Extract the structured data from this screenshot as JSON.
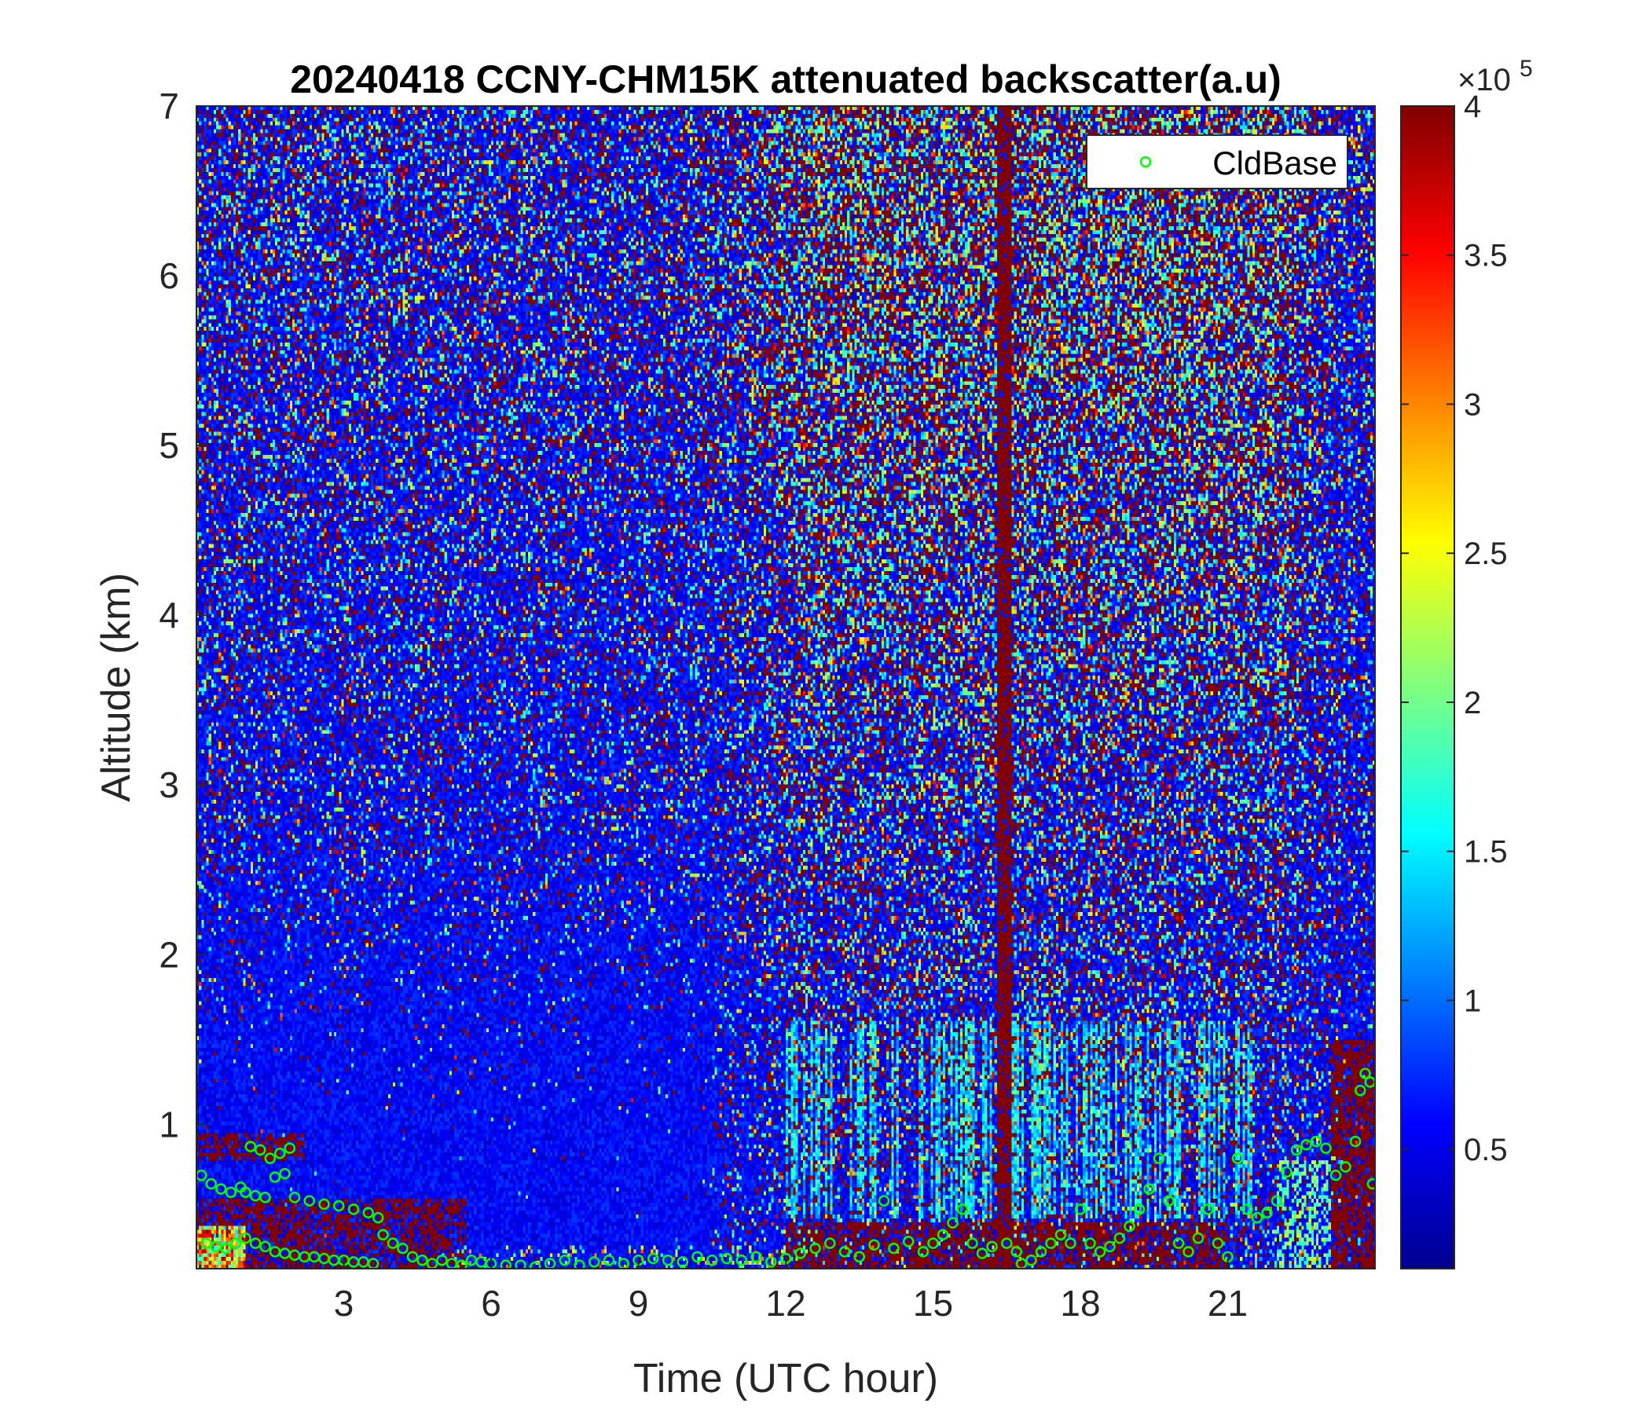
{
  "chart_data": {
    "type": "heatmap",
    "title": "20240418 CCNY-CHM15K attenuated backscatter(a.u)",
    "xlabel": "Time (UTC hour)",
    "ylabel": "Altitude (km)",
    "xlim": [
      0,
      24
    ],
    "ylim": [
      0.15,
      7
    ],
    "x_ticks": [
      3,
      6,
      9,
      12,
      15,
      18,
      21
    ],
    "y_ticks": [
      1,
      2,
      3,
      4,
      5,
      6,
      7
    ],
    "colormap": "jet",
    "colorbar": {
      "range": [
        10000,
        400000
      ],
      "ticks": [
        0.5,
        1,
        1.5,
        2,
        2.5,
        3,
        3.5,
        4
      ],
      "multiplier_base": "×10",
      "multiplier_exp": "5"
    },
    "legend": {
      "position": "top-right",
      "entries": [
        {
          "name": "CldBase",
          "marker": "circle",
          "color": "#00ff00"
        }
      ]
    },
    "series": [
      {
        "name": "CldBase",
        "points": [
          [
            0.1,
            0.7
          ],
          [
            0.3,
            0.65
          ],
          [
            0.5,
            0.62
          ],
          [
            0.7,
            0.6
          ],
          [
            0.9,
            0.63
          ],
          [
            1.1,
            0.87
          ],
          [
            1.3,
            0.85
          ],
          [
            1.5,
            0.8
          ],
          [
            1.7,
            0.83
          ],
          [
            1.9,
            0.86
          ],
          [
            1.0,
            0.6
          ],
          [
            1.2,
            0.58
          ],
          [
            1.4,
            0.57
          ],
          [
            1.6,
            0.69
          ],
          [
            1.8,
            0.71
          ],
          [
            2.0,
            0.57
          ],
          [
            2.3,
            0.55
          ],
          [
            2.6,
            0.53
          ],
          [
            2.9,
            0.52
          ],
          [
            3.2,
            0.5
          ],
          [
            3.5,
            0.48
          ],
          [
            3.7,
            0.45
          ],
          [
            0.2,
            0.3
          ],
          [
            0.4,
            0.28
          ],
          [
            0.6,
            0.27
          ],
          [
            0.8,
            0.3
          ],
          [
            1.0,
            0.33
          ],
          [
            1.2,
            0.3
          ],
          [
            1.4,
            0.28
          ],
          [
            1.6,
            0.25
          ],
          [
            1.8,
            0.24
          ],
          [
            2.0,
            0.23
          ],
          [
            2.2,
            0.22
          ],
          [
            2.4,
            0.22
          ],
          [
            2.6,
            0.21
          ],
          [
            2.8,
            0.2
          ],
          [
            3.0,
            0.2
          ],
          [
            3.2,
            0.19
          ],
          [
            3.4,
            0.19
          ],
          [
            3.6,
            0.18
          ],
          [
            3.8,
            0.35
          ],
          [
            4.0,
            0.3
          ],
          [
            4.2,
            0.27
          ],
          [
            4.4,
            0.22
          ],
          [
            4.6,
            0.2
          ],
          [
            4.8,
            0.18
          ],
          [
            5.0,
            0.2
          ],
          [
            5.2,
            0.18
          ],
          [
            5.4,
            0.17
          ],
          [
            5.6,
            0.2
          ],
          [
            5.8,
            0.19
          ],
          [
            6.0,
            0.18
          ],
          [
            6.3,
            0.17
          ],
          [
            6.6,
            0.17
          ],
          [
            6.9,
            0.16
          ],
          [
            7.2,
            0.18
          ],
          [
            7.5,
            0.2
          ],
          [
            7.8,
            0.17
          ],
          [
            8.1,
            0.19
          ],
          [
            8.4,
            0.2
          ],
          [
            8.7,
            0.18
          ],
          [
            9.0,
            0.2
          ],
          [
            9.3,
            0.21
          ],
          [
            9.6,
            0.2
          ],
          [
            9.9,
            0.19
          ],
          [
            10.2,
            0.22
          ],
          [
            10.5,
            0.2
          ],
          [
            10.8,
            0.21
          ],
          [
            11.1,
            0.2
          ],
          [
            11.4,
            0.22
          ],
          [
            11.7,
            0.19
          ],
          [
            12.0,
            0.21
          ],
          [
            12.3,
            0.24
          ],
          [
            12.6,
            0.27
          ],
          [
            12.9,
            0.3
          ],
          [
            13.2,
            0.25
          ],
          [
            13.5,
            0.22
          ],
          [
            13.8,
            0.29
          ],
          [
            14.0,
            0.55
          ],
          [
            14.2,
            0.27
          ],
          [
            14.5,
            0.31
          ],
          [
            14.8,
            0.25
          ],
          [
            15.0,
            0.3
          ],
          [
            15.2,
            0.35
          ],
          [
            15.4,
            0.42
          ],
          [
            15.6,
            0.5
          ],
          [
            15.8,
            0.3
          ],
          [
            16.0,
            0.24
          ],
          [
            16.2,
            0.28
          ],
          [
            16.8,
            0.18
          ],
          [
            17.0,
            0.2
          ],
          [
            17.2,
            0.25
          ],
          [
            17.4,
            0.3
          ],
          [
            17.6,
            0.35
          ],
          [
            17.8,
            0.3
          ],
          [
            18.0,
            0.5
          ],
          [
            18.2,
            0.3
          ],
          [
            18.4,
            0.25
          ],
          [
            18.6,
            0.28
          ],
          [
            18.8,
            0.33
          ],
          [
            19.0,
            0.4
          ],
          [
            19.2,
            0.5
          ],
          [
            19.4,
            0.62
          ],
          [
            19.6,
            0.8
          ],
          [
            19.8,
            0.55
          ],
          [
            20.0,
            0.3
          ],
          [
            20.2,
            0.25
          ],
          [
            20.4,
            0.33
          ],
          [
            20.6,
            0.5
          ],
          [
            20.8,
            0.3
          ],
          [
            21.0,
            0.22
          ],
          [
            21.2,
            0.8
          ],
          [
            21.4,
            0.5
          ],
          [
            21.6,
            0.45
          ],
          [
            21.8,
            0.48
          ],
          [
            22.0,
            0.55
          ],
          [
            22.2,
            0.72
          ],
          [
            22.4,
            0.85
          ],
          [
            22.6,
            0.88
          ],
          [
            22.8,
            0.9
          ],
          [
            23.0,
            0.86
          ],
          [
            23.2,
            0.7
          ],
          [
            23.4,
            0.75
          ],
          [
            23.6,
            0.9
          ],
          [
            23.7,
            1.2
          ],
          [
            23.8,
            1.3
          ],
          [
            23.9,
            1.25
          ],
          [
            23.95,
            0.65
          ],
          [
            16.5,
            0.3
          ],
          [
            16.7,
            0.25
          ]
        ]
      }
    ]
  }
}
